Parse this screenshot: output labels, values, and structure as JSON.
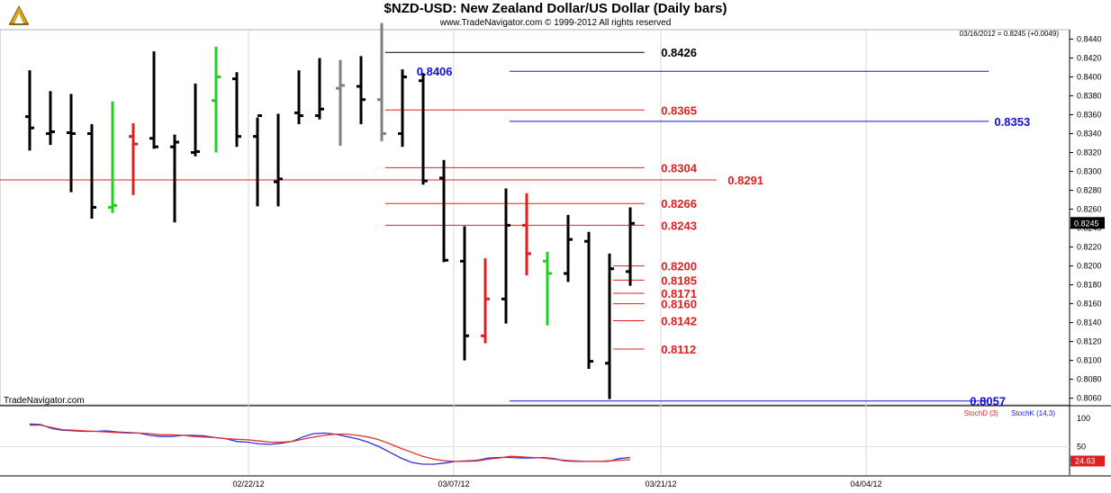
{
  "header": {
    "title": "$NZD-USD:  New Zealand Dollar/US Dollar  (Daily bars)",
    "subtitle": "www.TradeNavigator.com © 1999-2012 All rights reserved",
    "last_info": "03/16/2012 = 0.8245 (+0.0049)",
    "brand": "TradeNavigator.com"
  },
  "oscillator": {
    "legend_d": "StochD (3)",
    "legend_k": "StochK (14,3)",
    "value_label": "24.63",
    "y_ticks": [
      "100",
      "50"
    ],
    "stoch_d": [
      88,
      88,
      84,
      80,
      79,
      78,
      77,
      76,
      75,
      74,
      74,
      73,
      71,
      71,
      70,
      68,
      67,
      66,
      64,
      63,
      62,
      60,
      58,
      58,
      59,
      63,
      67,
      70,
      72,
      72,
      70,
      67,
      62,
      55,
      47,
      40,
      33,
      28,
      25,
      24,
      24,
      25,
      28,
      30,
      33,
      32,
      31,
      30,
      28,
      26,
      25,
      24,
      24,
      25,
      26,
      27
    ],
    "stoch_k": [
      90,
      89,
      82,
      79,
      78,
      77,
      77,
      78,
      76,
      75,
      74,
      70,
      68,
      68,
      70,
      70,
      69,
      66,
      64,
      59,
      58,
      55,
      54,
      56,
      59,
      67,
      73,
      74,
      72,
      68,
      64,
      58,
      50,
      40,
      30,
      22,
      19,
      19,
      21,
      24,
      25,
      26,
      30,
      31,
      31,
      30,
      30,
      31,
      29,
      25,
      24,
      24,
      24,
      24,
      29,
      31
    ],
    "colors": {
      "stoch_d": "#e03030",
      "stoch_k": "#3030e0"
    }
  },
  "chart_data": {
    "type": "ohlc",
    "title": "$NZD-USD:  New Zealand Dollar/US Dollar  (Daily bars)",
    "ylim": [
      0.8052,
      0.845
    ],
    "y_ticks": [
      "0.8440",
      "0.8420",
      "0.8400",
      "0.8380",
      "0.8360",
      "0.8340",
      "0.8320",
      "0.8300",
      "0.8280",
      "0.8260",
      "0.8240",
      "0.8220",
      "0.8200",
      "0.8180",
      "0.8160",
      "0.8140",
      "0.8120",
      "0.8100",
      "0.8080",
      "0.8060"
    ],
    "x_labels": [
      "02/22/12",
      "03/07/12",
      "03/21/12",
      "04/04/12"
    ],
    "last_price_label": "0.8245",
    "colors": {
      "up": "#20d020",
      "down": "#e02020",
      "normal": "#000000",
      "gray": "#808080"
    },
    "bars": [
      {
        "o": 0.8358,
        "h": 0.8407,
        "l": 0.8322,
        "c": 0.8346,
        "color": "normal"
      },
      {
        "o": 0.834,
        "h": 0.8385,
        "l": 0.8328,
        "c": 0.8342,
        "color": "normal"
      },
      {
        "o": 0.8341,
        "h": 0.8382,
        "l": 0.8278,
        "c": 0.834,
        "color": "normal"
      },
      {
        "o": 0.834,
        "h": 0.835,
        "l": 0.825,
        "c": 0.8262,
        "color": "normal"
      },
      {
        "o": 0.8262,
        "h": 0.8374,
        "l": 0.8256,
        "c": 0.8264,
        "color": "up"
      },
      {
        "o": 0.8337,
        "h": 0.8351,
        "l": 0.8275,
        "c": 0.8329,
        "color": "down"
      },
      {
        "o": 0.8335,
        "h": 0.8427,
        "l": 0.8324,
        "c": 0.8326,
        "color": "normal"
      },
      {
        "o": 0.8326,
        "h": 0.8339,
        "l": 0.8246,
        "c": 0.8331,
        "color": "normal"
      },
      {
        "o": 0.832,
        "h": 0.8393,
        "l": 0.8316,
        "c": 0.8321,
        "color": "normal"
      },
      {
        "o": 0.8375,
        "h": 0.8432,
        "l": 0.832,
        "c": 0.84,
        "color": "up"
      },
      {
        "o": 0.8398,
        "h": 0.8405,
        "l": 0.8326,
        "c": 0.8337,
        "color": "normal"
      },
      {
        "o": 0.8337,
        "h": 0.8357,
        "l": 0.8263,
        "c": 0.8359,
        "color": "normal"
      },
      {
        "o": 0.8289,
        "h": 0.8361,
        "l": 0.8263,
        "c": 0.8292,
        "color": "normal"
      },
      {
        "o": 0.8362,
        "h": 0.8407,
        "l": 0.835,
        "c": 0.8359,
        "color": "normal"
      },
      {
        "o": 0.8359,
        "h": 0.842,
        "l": 0.8355,
        "c": 0.8366,
        "color": "normal"
      },
      {
        "o": 0.8388,
        "h": 0.8418,
        "l": 0.8327,
        "c": 0.8391,
        "color": "gray"
      },
      {
        "o": 0.839,
        "h": 0.8422,
        "l": 0.835,
        "c": 0.8376,
        "color": "normal"
      },
      {
        "o": 0.8376,
        "h": 0.8457,
        "l": 0.8332,
        "c": 0.834,
        "color": "gray"
      },
      {
        "o": 0.834,
        "h": 0.8408,
        "l": 0.8326,
        "c": 0.84,
        "color": "normal"
      },
      {
        "o": 0.8396,
        "h": 0.8404,
        "l": 0.8286,
        "c": 0.829,
        "color": "normal"
      },
      {
        "o": 0.8293,
        "h": 0.8312,
        "l": 0.8204,
        "c": 0.8206,
        "color": "normal"
      },
      {
        "o": 0.8205,
        "h": 0.8242,
        "l": 0.81,
        "c": 0.8126,
        "color": "normal"
      },
      {
        "o": 0.8126,
        "h": 0.8208,
        "l": 0.8118,
        "c": 0.8165,
        "color": "down"
      },
      {
        "o": 0.8165,
        "h": 0.8282,
        "l": 0.8139,
        "c": 0.8243,
        "color": "normal"
      },
      {
        "o": 0.8243,
        "h": 0.8277,
        "l": 0.819,
        "c": 0.8213,
        "color": "down"
      },
      {
        "o": 0.8205,
        "h": 0.8215,
        "l": 0.8137,
        "c": 0.8192,
        "color": "up"
      },
      {
        "o": 0.8192,
        "h": 0.8254,
        "l": 0.8183,
        "c": 0.8228,
        "color": "normal"
      },
      {
        "o": 0.8226,
        "h": 0.8236,
        "l": 0.8091,
        "c": 0.8099,
        "color": "normal"
      },
      {
        "o": 0.8097,
        "h": 0.8213,
        "l": 0.8059,
        "c": 0.8197,
        "color": "normal"
      },
      {
        "o": 0.8194,
        "h": 0.8262,
        "l": 0.8179,
        "c": 0.8245,
        "color": "normal"
      }
    ],
    "levels": [
      {
        "value": 0.8426,
        "label": "0.8426",
        "color": "#000000",
        "from_bar": 17,
        "line_end": 0.58,
        "label_pos": 0.595
      },
      {
        "value": 0.8406,
        "label": "0.8406",
        "color": "#1010e0",
        "from_bar": 23,
        "line_end": 0.89,
        "label_pos": 0.375
      },
      {
        "value": 0.8365,
        "label": "0.8365",
        "color": "#e02020",
        "from_bar": 17,
        "line_end": 0.58,
        "label_pos": 0.595
      },
      {
        "value": 0.8353,
        "label": "0.8353",
        "color": "#1010e0",
        "from_bar": 23,
        "line_end": 0.89,
        "label_pos": 0.895
      },
      {
        "value": 0.8304,
        "label": "0.8304",
        "color": "#e02020",
        "from_bar": 17,
        "line_end": 0.58,
        "label_pos": 0.595
      },
      {
        "value": 0.8291,
        "label": "0.8291",
        "color": "#e02020",
        "from_bar": -1,
        "line_end": 0.645,
        "label_pos": 0.655
      },
      {
        "value": 0.8266,
        "label": "0.8266",
        "color": "#e02020",
        "from_bar": 17,
        "line_end": 0.58,
        "label_pos": 0.595
      },
      {
        "value": 0.8243,
        "label": "0.8243",
        "color": "#e02020",
        "from_bar": 17,
        "line_end": 0.58,
        "label_pos": 0.595
      },
      {
        "value": 0.82,
        "label": "0.8200",
        "color": "#e02020",
        "from_bar": 28,
        "line_end": 0.58,
        "label_pos": 0.595
      },
      {
        "value": 0.8185,
        "label": "0.8185",
        "color": "#e02020",
        "from_bar": 28,
        "line_end": 0.58,
        "label_pos": 0.595
      },
      {
        "value": 0.8171,
        "label": "0.8171",
        "color": "#e02020",
        "from_bar": 28,
        "line_end": 0.58,
        "label_pos": 0.595
      },
      {
        "value": 0.816,
        "label": "0.8160",
        "color": "#e02020",
        "from_bar": 28,
        "line_end": 0.58,
        "label_pos": 0.595
      },
      {
        "value": 0.8142,
        "label": "0.8142",
        "color": "#e02020",
        "from_bar": 28,
        "line_end": 0.58,
        "label_pos": 0.595
      },
      {
        "value": 0.8112,
        "label": "0.8112",
        "color": "#e02020",
        "from_bar": 28,
        "line_end": 0.58,
        "label_pos": 0.595
      },
      {
        "value": 0.8057,
        "label": "0.8057",
        "color": "#1010e0",
        "from_bar": 23,
        "line_end": 0.89,
        "label_pos": 0.873
      }
    ]
  }
}
